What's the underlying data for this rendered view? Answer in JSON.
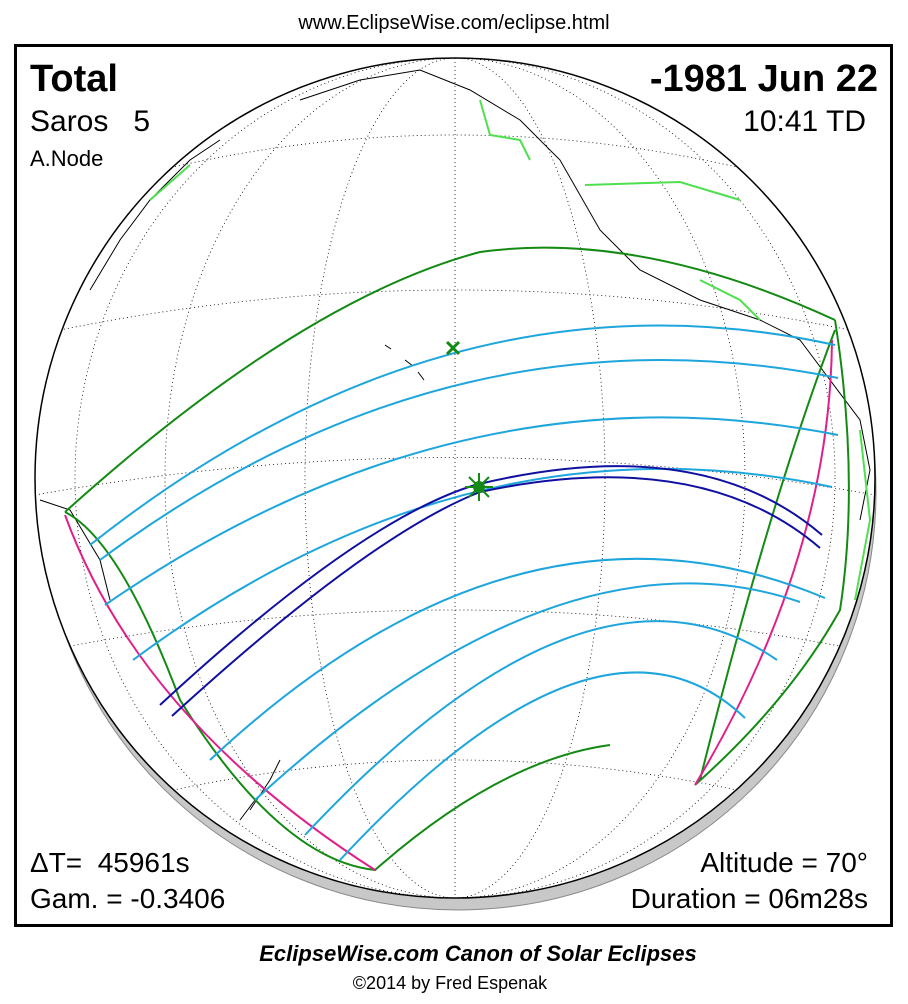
{
  "header": {
    "url": "www.EclipseWise.com/eclipse.html"
  },
  "panel": {
    "eclipse_type": "Total",
    "saros": "Saros   5",
    "node": "A.Node",
    "date": "-1981 Jun 22",
    "time": "10:41 TD",
    "delta_t": "ΔT=  45961s",
    "gamma": "Gam. = -0.3406",
    "altitude": "Altitude = 70°",
    "duration": "Duration = 06m28s"
  },
  "footer": {
    "title": "EclipseWise.com Canon of Solar Eclipses",
    "copyright": "©2014 by Fred Espenak"
  }
}
